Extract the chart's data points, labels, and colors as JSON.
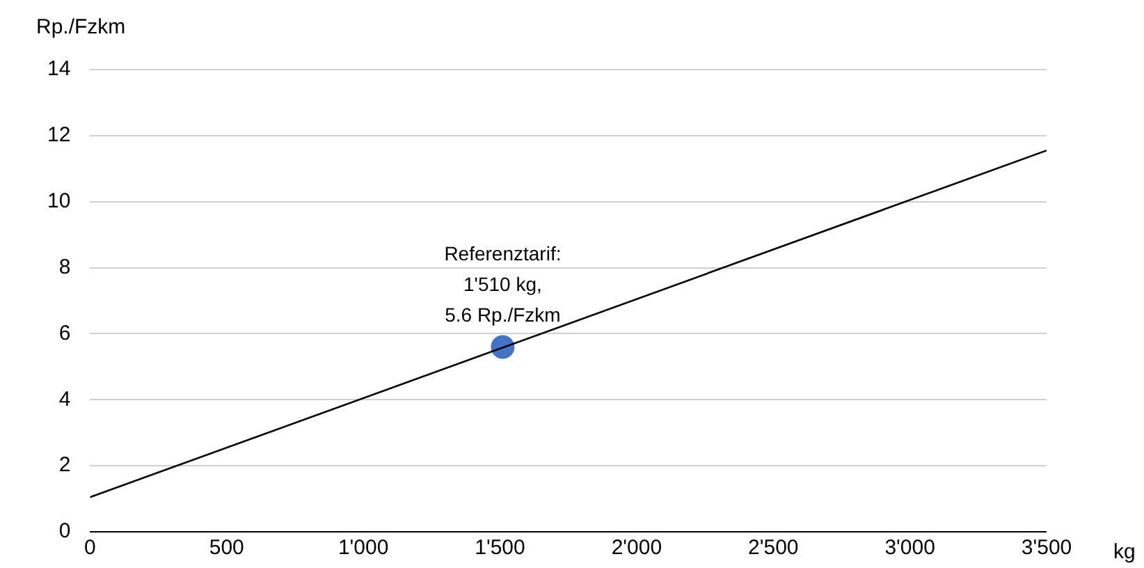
{
  "chart_data": {
    "type": "line",
    "xlabel": "kg",
    "ylabel": "Rp./Fzkm",
    "series": [
      {
        "type": "line",
        "color": "#000000",
        "x": [
          0,
          3500
        ],
        "values": [
          1.05,
          11.55
        ],
        "marker": "none"
      },
      {
        "type": "scatter",
        "color": "#4472c4",
        "x": [
          1510
        ],
        "values": [
          5.6
        ],
        "marker": "circle"
      }
    ],
    "xlim": [
      0,
      3500
    ],
    "xticks": [
      0,
      500,
      {
        "value": 1000,
        "label": "1'000"
      },
      {
        "value": 1500,
        "label": "1'500"
      },
      {
        "value": 2000,
        "label": "2'000"
      },
      {
        "value": 2500,
        "label": "2'500"
      },
      {
        "value": 3000,
        "label": "3'000"
      },
      {
        "value": 3500,
        "label": "3'500"
      }
    ],
    "ylim": [
      0,
      14
    ],
    "yticks": [
      0,
      2,
      4,
      6,
      8,
      10,
      12,
      14
    ],
    "grid": "y",
    "legend": false,
    "annotations": [
      {
        "text": "Referenztarif:\n1'510 kg,\n5.6 Rp./Fzkm",
        "x": 1510,
        "y": 5.6
      }
    ]
  }
}
